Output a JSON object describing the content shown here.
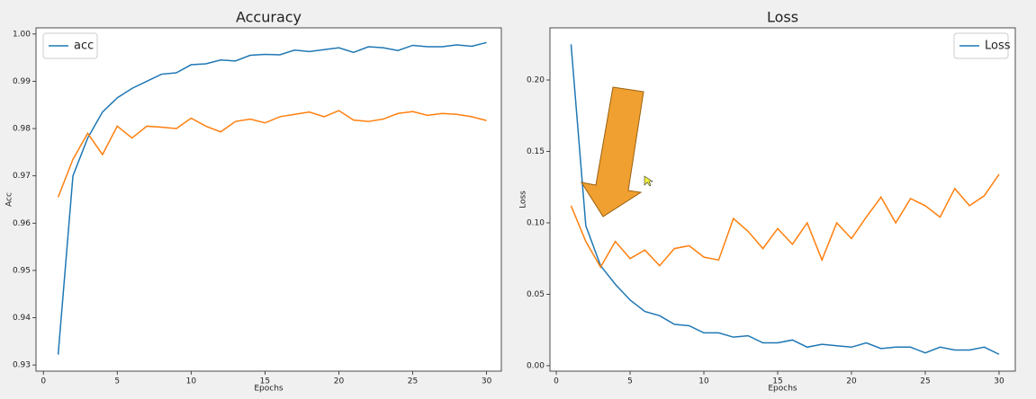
{
  "chart_data": [
    {
      "type": "line",
      "title": "Accuracy",
      "xlabel": "Epochs",
      "ylabel": "Acc",
      "x": [
        1,
        2,
        3,
        4,
        5,
        6,
        7,
        8,
        9,
        10,
        11,
        12,
        13,
        14,
        15,
        16,
        17,
        18,
        19,
        20,
        21,
        22,
        23,
        24,
        25,
        26,
        27,
        28,
        29,
        30
      ],
      "series": [
        {
          "name": "acc",
          "color": "#1f77b4",
          "values": [
            0.9322,
            0.97,
            0.978,
            0.9835,
            0.9865,
            0.9885,
            0.99,
            0.9915,
            0.9918,
            0.9935,
            0.9937,
            0.9945,
            0.9943,
            0.9955,
            0.9957,
            0.9956,
            0.9966,
            0.9963,
            0.9967,
            0.9971,
            0.9961,
            0.9973,
            0.9971,
            0.9965,
            0.9976,
            0.9973,
            0.9973,
            0.9977,
            0.9974,
            0.9982
          ]
        },
        {
          "color": "#ff7f0e",
          "values": [
            0.9655,
            0.9735,
            0.979,
            0.9745,
            0.9805,
            0.978,
            0.9805,
            0.9803,
            0.98,
            0.9822,
            0.9805,
            0.9793,
            0.9815,
            0.982,
            0.9812,
            0.9825,
            0.983,
            0.9835,
            0.9825,
            0.9838,
            0.9818,
            0.9815,
            0.982,
            0.9832,
            0.9836,
            0.9828,
            0.9832,
            0.983,
            0.9825,
            0.9817
          ]
        }
      ],
      "xlim": [
        -0.5,
        31
      ],
      "ylim": [
        0.9287,
        1.0013
      ],
      "xticks": [
        0,
        5,
        10,
        15,
        20,
        25,
        30
      ],
      "yticks": [
        0.93,
        0.94,
        0.95,
        0.96,
        0.97,
        0.98,
        0.99,
        {
          "value": 1,
          "label": "1.00"
        }
      ],
      "legend": "upper left"
    },
    {
      "type": "line",
      "title": "Loss",
      "xlabel": "Epochs",
      "ylabel": "Loss",
      "x": [
        1,
        2,
        3,
        4,
        5,
        6,
        7,
        8,
        9,
        10,
        11,
        12,
        13,
        14,
        15,
        16,
        17,
        18,
        19,
        20,
        21,
        22,
        23,
        24,
        25,
        26,
        27,
        28,
        29,
        30
      ],
      "series": [
        {
          "name": "Loss",
          "color": "#1f77b4",
          "values": [
            0.225,
            0.098,
            0.07,
            0.057,
            0.046,
            0.038,
            0.035,
            0.029,
            0.028,
            0.023,
            0.023,
            0.02,
            0.021,
            0.016,
            0.016,
            0.018,
            0.013,
            0.015,
            0.014,
            0.013,
            0.016,
            0.012,
            0.013,
            0.013,
            0.009,
            0.013,
            0.011,
            0.011,
            0.013,
            0.008
          ]
        },
        {
          "color": "#ff7f0e",
          "values": [
            0.112,
            0.087,
            0.069,
            0.087,
            0.075,
            0.081,
            0.07,
            0.082,
            0.084,
            0.076,
            0.074,
            0.103,
            0.094,
            0.082,
            0.096,
            0.085,
            0.1,
            0.074,
            0.1,
            0.089,
            0.104,
            0.118,
            0.1,
            0.117,
            0.112,
            0.104,
            0.124,
            0.112,
            0.119,
            0.134
          ]
        }
      ],
      "xlim": [
        -0.43,
        31.1
      ],
      "ylim": [
        -0.0038,
        0.2365
      ],
      "xticks": [
        0,
        5,
        10,
        15,
        20,
        25,
        30
      ],
      "yticks": [
        {
          "value": 0,
          "label": "0.00"
        },
        0.05,
        {
          "value": 0.1,
          "label": "0.10"
        },
        0.15,
        {
          "value": 0.2,
          "label": "0.20"
        }
      ],
      "legend": "upper right"
    }
  ]
}
